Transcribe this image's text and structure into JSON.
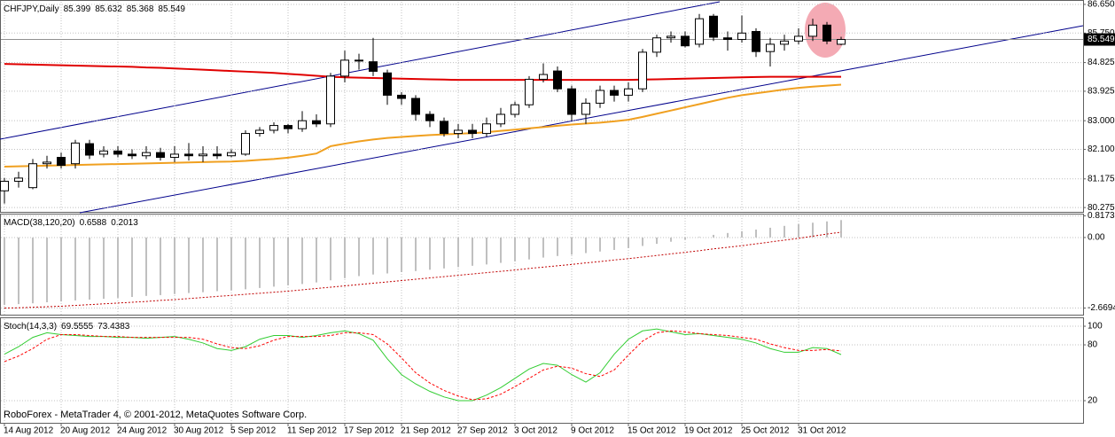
{
  "chart_data": [
    {
      "type": "candlestick",
      "title": "CHFJPY,Daily",
      "categories": [
        "14 Aug 2012",
        null,
        null,
        null,
        "20 Aug 2012",
        null,
        null,
        null,
        "24 Aug 2012",
        null,
        null,
        null,
        "30 Aug 2012",
        null,
        null,
        null,
        "5 Sep 2012",
        null,
        null,
        null,
        "11 Sep 2012",
        null,
        null,
        null,
        "17 Sep 2012",
        null,
        null,
        null,
        "21 Sep 2012",
        null,
        null,
        null,
        "27 Sep 2012",
        null,
        null,
        null,
        "3 Oct 2012",
        null,
        null,
        null,
        "9 Oct 2012",
        null,
        null,
        null,
        "15 Oct 2012",
        null,
        null,
        null,
        "19 Oct 2012",
        null,
        null,
        null,
        "25 Oct 2012",
        null,
        null,
        null,
        "31 Oct 2012",
        null,
        null,
        null
      ],
      "open": [
        80.8,
        81.1,
        80.9,
        81.65,
        81.85,
        81.65,
        82.28,
        81.95,
        82.05,
        81.95,
        81.9,
        82.0,
        81.85,
        81.95,
        81.9,
        81.95,
        81.9,
        81.95,
        82.6,
        82.7,
        82.85,
        82.75,
        83.0,
        82.9,
        84.4,
        84.9,
        84.85,
        84.5,
        83.8,
        83.7,
        83.2,
        82.98,
        82.6,
        82.7,
        82.6,
        82.9,
        83.2,
        83.5,
        84.3,
        84.56,
        84.0,
        83.2,
        83.55,
        83.95,
        83.8,
        84.0,
        85.15,
        85.6,
        85.65,
        85.4,
        86.28,
        85.6,
        85.55,
        85.8,
        85.17,
        85.4,
        85.5,
        85.65,
        86.0,
        85.399
      ],
      "high": [
        81.2,
        81.4,
        81.8,
        81.9,
        82.0,
        82.4,
        82.4,
        82.2,
        82.2,
        82.1,
        82.2,
        82.15,
        82.2,
        82.3,
        82.2,
        82.2,
        82.1,
        82.7,
        82.8,
        82.95,
        82.9,
        83.3,
        83.2,
        84.5,
        85.2,
        85.1,
        85.6,
        84.6,
        83.9,
        83.8,
        83.3,
        83.1,
        82.9,
        82.9,
        83.1,
        83.4,
        83.6,
        84.4,
        84.8,
        84.7,
        84.1,
        83.7,
        84.1,
        84.1,
        84.2,
        85.25,
        85.7,
        85.8,
        85.8,
        86.35,
        86.35,
        85.8,
        86.3,
        85.9,
        85.6,
        85.7,
        85.9,
        86.2,
        86.1,
        85.632
      ],
      "low": [
        80.4,
        80.9,
        80.85,
        81.5,
        81.5,
        81.5,
        81.8,
        81.85,
        81.85,
        81.8,
        81.8,
        81.75,
        81.7,
        81.75,
        81.7,
        81.8,
        81.85,
        81.9,
        82.5,
        82.6,
        82.6,
        82.65,
        82.8,
        82.8,
        84.2,
        84.6,
        84.4,
        83.5,
        83.5,
        83.0,
        82.8,
        82.5,
        82.45,
        82.45,
        82.5,
        82.8,
        83.1,
        83.4,
        84.2,
        83.9,
        83.0,
        82.9,
        83.4,
        83.6,
        83.6,
        83.9,
        85.0,
        85.45,
        85.3,
        85.3,
        85.5,
        85.2,
        85.45,
        85.0,
        84.7,
        85.2,
        85.4,
        85.5,
        85.4,
        85.368
      ],
      "close": [
        81.1,
        81.2,
        81.65,
        81.7,
        81.6,
        82.3,
        81.92,
        82.05,
        81.95,
        81.9,
        82.0,
        81.85,
        81.95,
        81.9,
        81.95,
        81.9,
        82.0,
        82.6,
        82.7,
        82.85,
        82.75,
        83.0,
        82.9,
        84.4,
        84.9,
        84.9,
        84.55,
        83.8,
        83.7,
        83.2,
        83.0,
        82.6,
        82.7,
        82.6,
        82.9,
        83.2,
        83.5,
        84.3,
        84.45,
        84.0,
        83.2,
        83.55,
        83.95,
        83.8,
        84.0,
        85.15,
        85.6,
        85.65,
        85.35,
        86.2,
        85.62,
        85.55,
        85.75,
        85.17,
        85.4,
        85.5,
        85.65,
        86.0,
        85.5,
        85.549
      ],
      "up_color": "#ffffff",
      "down_color": "#000000",
      "series": [
        {
          "color": "#e00000",
          "values": [
            84.78,
            84.77,
            84.76,
            84.75,
            84.74,
            84.73,
            84.72,
            84.71,
            84.7,
            84.69,
            84.67,
            84.66,
            84.64,
            84.62,
            84.6,
            84.58,
            84.56,
            84.54,
            84.52,
            84.5,
            84.47,
            84.44,
            84.41,
            84.38,
            84.36,
            84.35,
            84.34,
            84.33,
            84.32,
            84.31,
            84.3,
            84.29,
            84.28,
            84.28,
            84.28,
            84.28,
            84.28,
            84.28,
            84.28,
            84.28,
            84.28,
            84.28,
            84.28,
            84.28,
            84.28,
            84.29,
            84.3,
            84.31,
            84.32,
            84.33,
            84.34,
            84.35,
            84.36,
            84.37,
            84.38,
            84.38,
            84.38,
            84.38,
            84.38,
            84.38
          ]
        },
        {
          "color": "#f0a020",
          "values": [
            81.56,
            81.57,
            81.58,
            81.59,
            81.6,
            81.61,
            81.62,
            81.63,
            81.64,
            81.65,
            81.66,
            81.67,
            81.68,
            81.69,
            81.7,
            81.71,
            81.72,
            81.74,
            81.77,
            81.8,
            81.84,
            81.9,
            81.97,
            82.2,
            82.28,
            82.35,
            82.41,
            82.46,
            82.49,
            82.52,
            82.55,
            82.57,
            82.59,
            82.61,
            82.64,
            82.68,
            82.72,
            82.76,
            82.8,
            82.84,
            82.88,
            82.91,
            82.94,
            82.98,
            83.03,
            83.12,
            83.22,
            83.32,
            83.42,
            83.52,
            83.62,
            83.72,
            83.8,
            83.86,
            83.92,
            83.98,
            84.03,
            84.07,
            84.1,
            84.13
          ]
        }
      ],
      "ylim": [
        80.14,
        86.76
      ],
      "yticks": [
        {
          "value": 86.65,
          "label": "86.650"
        },
        {
          "value": 85.75,
          "label": "85.750"
        },
        {
          "value": 84.825,
          "label": "84.825"
        },
        {
          "value": 83.925,
          "label": "83.925"
        },
        {
          "value": 83,
          "label": "83.000"
        },
        {
          "value": 82.1,
          "label": "82.100"
        },
        {
          "value": 81.175,
          "label": "81.175"
        },
        {
          "value": 80.275,
          "label": "80.275"
        }
      ],
      "grid": true
    },
    {
      "type": "bar",
      "title": "MACD(38,120,20)",
      "series": [
        {
          "color": "#c0c0c0",
          "values": [
            -2.55,
            -2.52,
            -2.49,
            -2.45,
            -2.42,
            -2.38,
            -2.35,
            -2.32,
            -2.28,
            -2.25,
            -2.21,
            -2.18,
            -2.14,
            -2.1,
            -2.07,
            -2.03,
            -2.0,
            -1.96,
            -1.91,
            -1.86,
            -1.81,
            -1.76,
            -1.7,
            -1.62,
            -1.54,
            -1.46,
            -1.4,
            -1.36,
            -1.31,
            -1.27,
            -1.22,
            -1.17,
            -1.12,
            -1.07,
            -1.02,
            -0.96,
            -0.9,
            -0.83,
            -0.76,
            -0.7,
            -0.65,
            -0.59,
            -0.53,
            -0.47,
            -0.4,
            -0.32,
            -0.24,
            -0.16,
            -0.08,
            0.02,
            0.1,
            0.17,
            0.24,
            0.3,
            0.37,
            0.44,
            0.5,
            0.56,
            0.61,
            0.6588
          ]
        },
        {
          "color": "#c00000",
          "values": [
            -2.67,
            -2.66,
            -2.64,
            -2.62,
            -2.6,
            -2.57,
            -2.54,
            -2.51,
            -2.48,
            -2.45,
            -2.42,
            -2.38,
            -2.35,
            -2.31,
            -2.27,
            -2.23,
            -2.19,
            -2.15,
            -2.11,
            -2.07,
            -2.03,
            -1.98,
            -1.93,
            -1.88,
            -1.83,
            -1.78,
            -1.73,
            -1.68,
            -1.63,
            -1.58,
            -1.53,
            -1.48,
            -1.43,
            -1.38,
            -1.33,
            -1.28,
            -1.23,
            -1.17,
            -1.12,
            -1.07,
            -1.02,
            -0.96,
            -0.91,
            -0.85,
            -0.8,
            -0.74,
            -0.68,
            -0.62,
            -0.56,
            -0.5,
            -0.43,
            -0.37,
            -0.31,
            -0.24,
            -0.17,
            -0.1,
            -0.03,
            0.05,
            0.13,
            0.2013
          ]
        }
      ],
      "ylim": [
        -2.92,
        0.87
      ],
      "yticks": [
        0.8173,
        {
          "value": 0,
          "label": "0.00"
        },
        -2.6694
      ],
      "grid": true
    },
    {
      "type": "line",
      "title": "Stoch(14,3,3)",
      "series": [
        {
          "color": "#32cd32",
          "values": [
            70,
            78,
            88,
            93,
            91,
            90,
            89,
            89,
            88,
            88,
            87,
            88,
            89,
            86,
            82,
            76,
            74,
            78,
            86,
            90,
            90,
            88,
            90,
            93,
            95,
            92,
            85,
            65,
            48,
            38,
            30,
            24,
            20,
            20,
            26,
            34,
            44,
            54,
            60,
            58,
            48,
            40,
            50,
            70,
            86,
            95,
            97,
            94,
            91,
            92,
            90,
            88,
            86,
            82,
            76,
            72,
            72,
            77,
            76,
            69.5555
          ]
        },
        {
          "color": "#ff0000",
          "values": [
            62,
            68,
            76,
            86,
            91,
            91,
            90,
            89,
            89,
            88,
            88,
            88,
            88,
            88,
            86,
            81,
            77,
            76,
            79,
            85,
            89,
            89,
            89,
            90,
            93,
            93,
            91,
            81,
            66,
            50,
            39,
            31,
            25,
            21,
            22,
            27,
            35,
            44,
            53,
            57,
            55,
            49,
            46,
            53,
            69,
            84,
            93,
            95,
            94,
            92,
            91,
            90,
            88,
            86,
            81,
            77,
            74,
            74,
            75,
            73.4383
          ]
        }
      ],
      "ylim": [
        -3.8,
        108.6
      ],
      "yticks": [
        100,
        80,
        20
      ],
      "grid": true,
      "annotation": "RoboForex - MetaTrader 4, © 2001-2012, MetaQuotes Software Corp."
    }
  ]
}
